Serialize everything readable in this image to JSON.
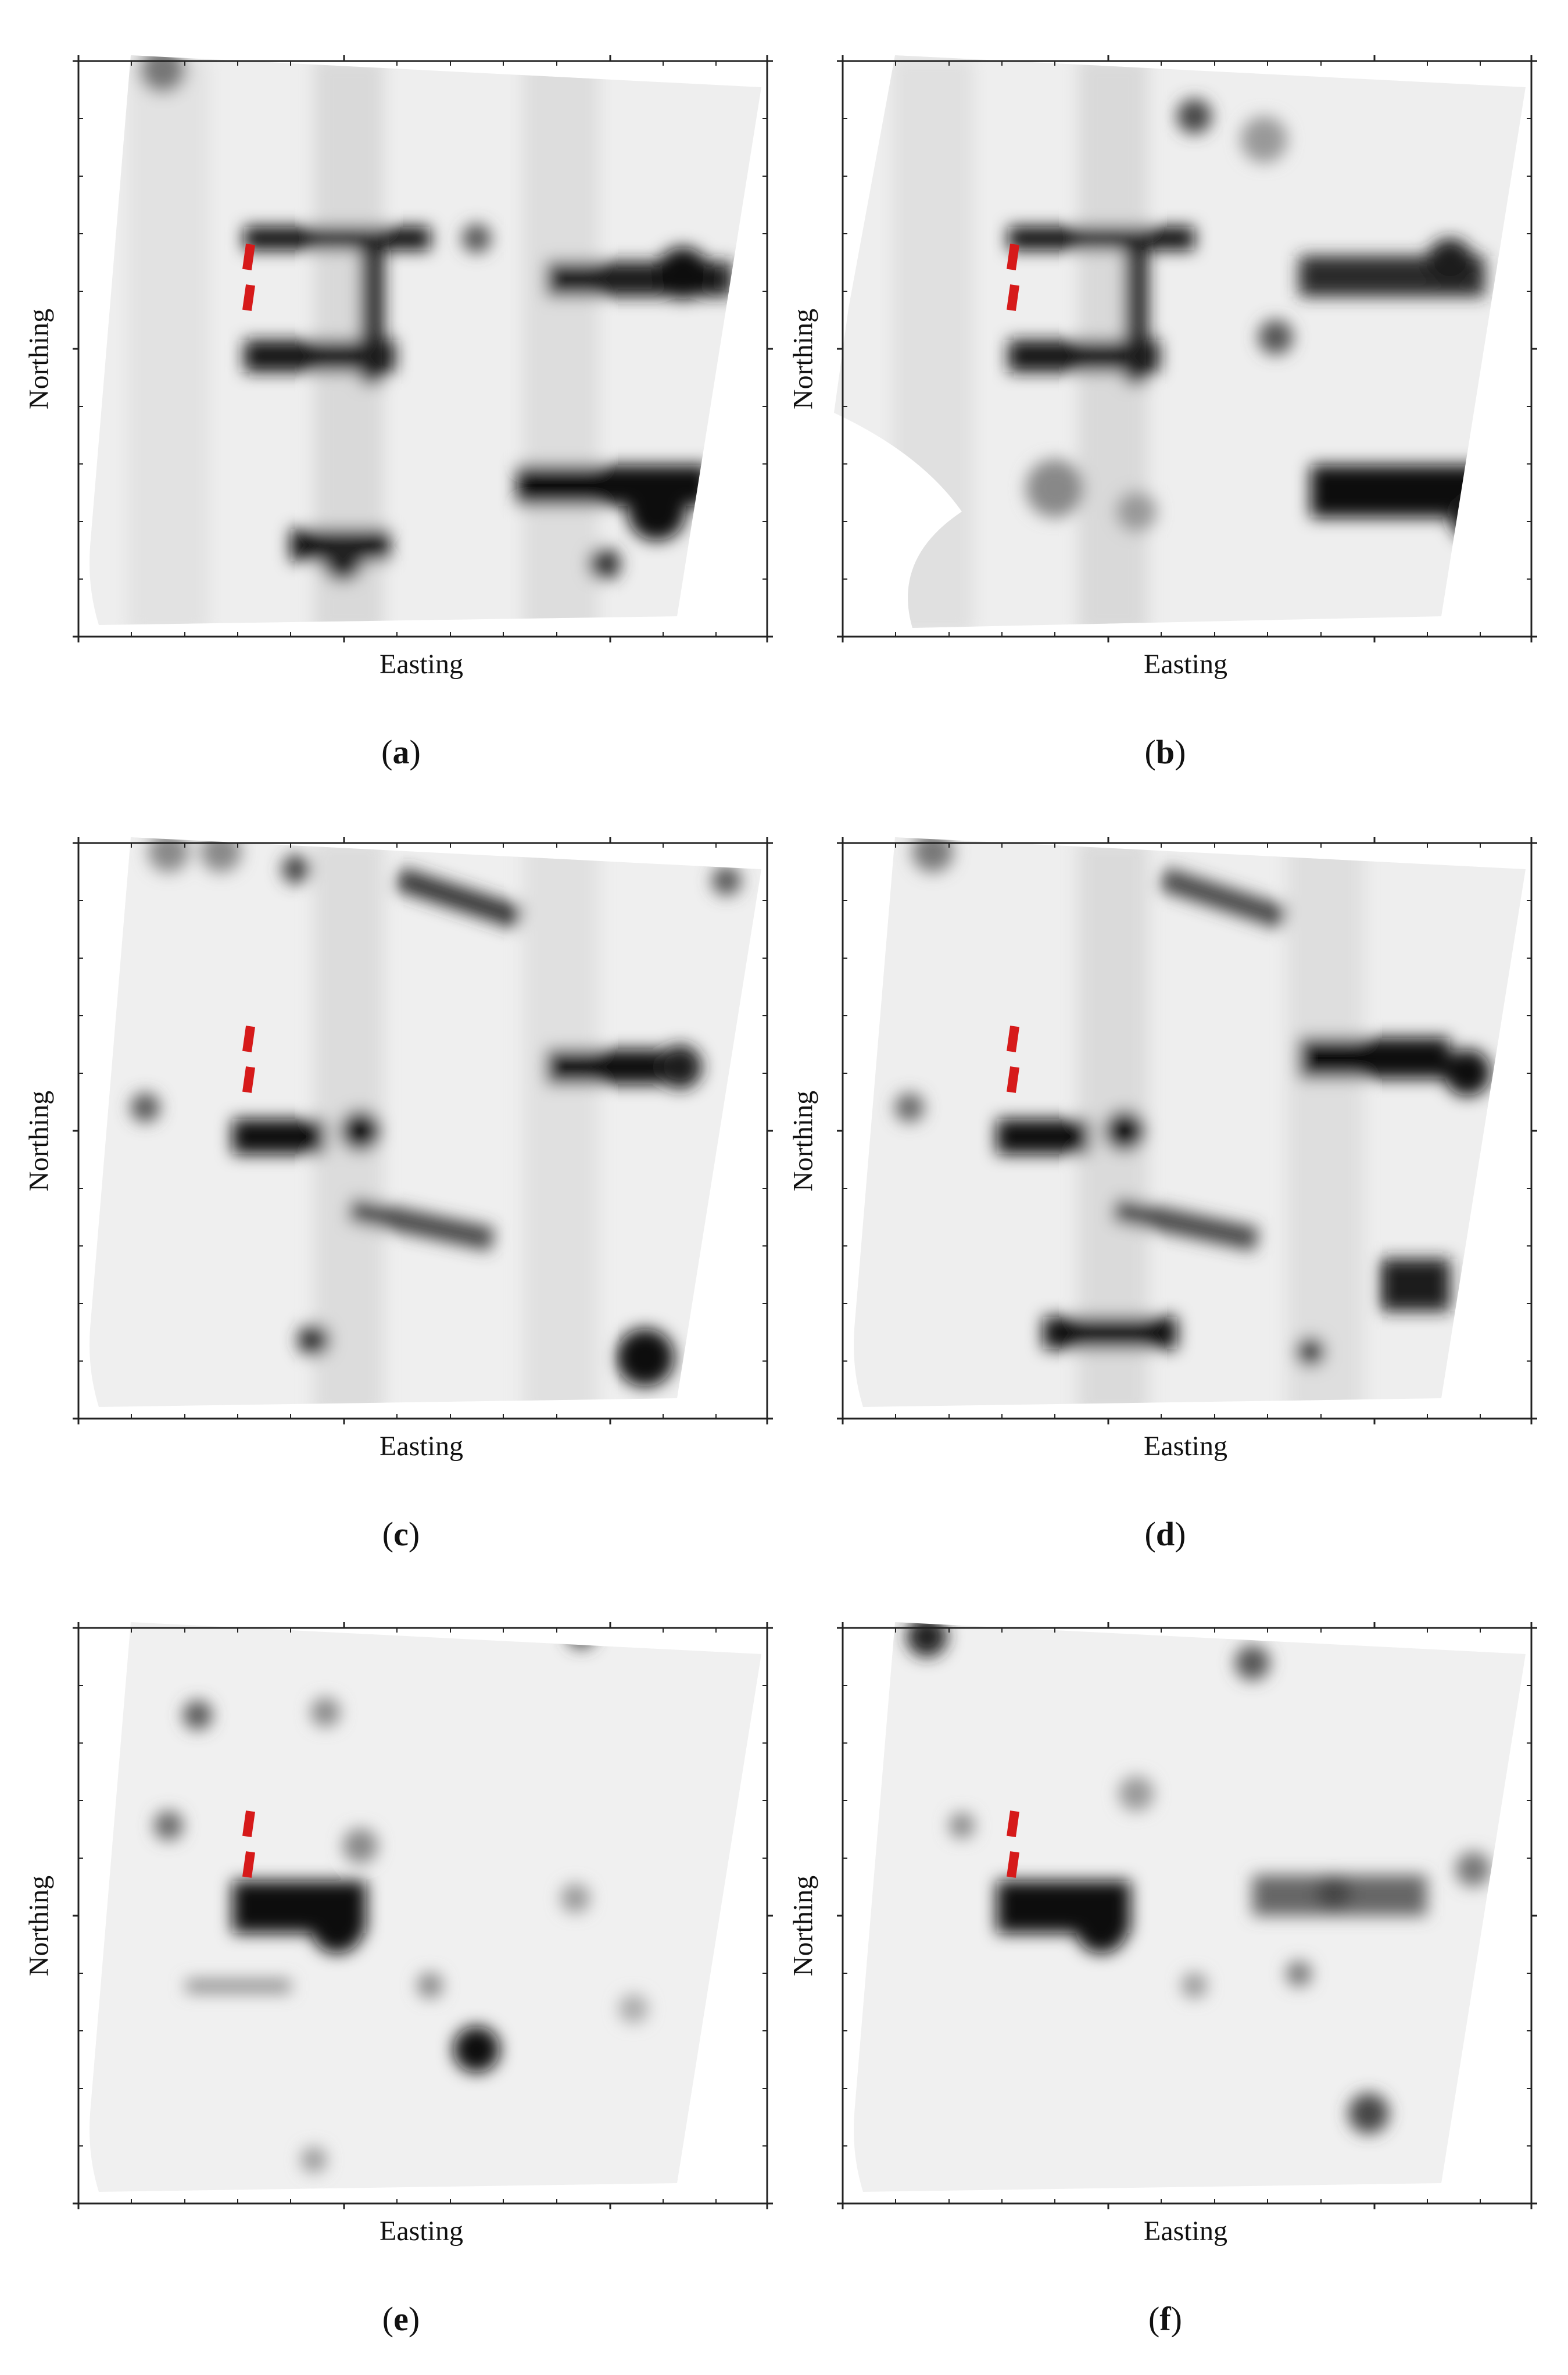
{
  "axis_labels": {
    "x": "Easting",
    "y": "Northing"
  },
  "colors": {
    "marker": "#d61a1a",
    "frame": "#222222",
    "background": "#ffffff"
  },
  "panels": [
    {
      "id": "a",
      "caption_open": "(",
      "caption_letter": "a",
      "caption_close": ")"
    },
    {
      "id": "b",
      "caption_open": "(",
      "caption_letter": "b",
      "caption_close": ")"
    },
    {
      "id": "c",
      "caption_open": "(",
      "caption_letter": "c",
      "caption_close": ")"
    },
    {
      "id": "d",
      "caption_open": "(",
      "caption_letter": "d",
      "caption_close": ")"
    },
    {
      "id": "e",
      "caption_open": "(",
      "caption_letter": "e",
      "caption_close": ")"
    },
    {
      "id": "f",
      "caption_open": "(",
      "caption_letter": "f",
      "caption_close": ")"
    }
  ]
}
